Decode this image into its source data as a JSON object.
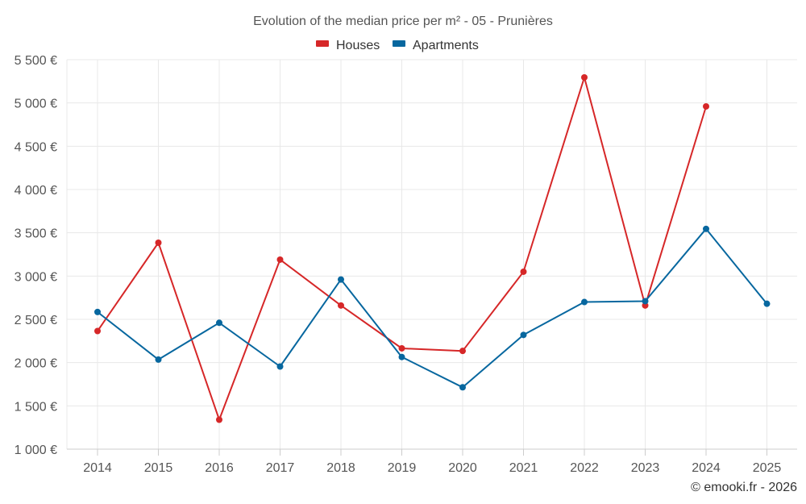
{
  "chart_data": {
    "type": "line",
    "title": "Evolution of the median price per m² - 05 - Prunières",
    "categories": [
      "2014",
      "2015",
      "2016",
      "2017",
      "2018",
      "2019",
      "2020",
      "2021",
      "2022",
      "2023",
      "2024",
      "2025"
    ],
    "series": [
      {
        "name": "Houses",
        "color": "#d62728",
        "values": [
          2365,
          3385,
          1340,
          3190,
          2660,
          2165,
          2135,
          3050,
          5295,
          2660,
          4960,
          null
        ]
      },
      {
        "name": "Apartments",
        "color": "#07679f",
        "values": [
          2585,
          2035,
          2460,
          1955,
          2960,
          2065,
          1715,
          2320,
          2700,
          2710,
          3545,
          2680
        ]
      }
    ],
    "y_ticks": [
      1000,
      1500,
      2000,
      2500,
      3000,
      3500,
      4000,
      4500,
      5000,
      5500
    ],
    "y_tick_labels": [
      "1 000 €",
      "1 500 €",
      "2 000 €",
      "2 500 €",
      "3 000 €",
      "3 500 €",
      "4 000 €",
      "4 500 €",
      "5 000 €",
      "5 500 €"
    ],
    "ylim": [
      1000,
      5500
    ],
    "xlabel": "",
    "ylabel": "",
    "grid": true,
    "legend_position": "top-center"
  },
  "credit": "© emooki.fr - 2026"
}
